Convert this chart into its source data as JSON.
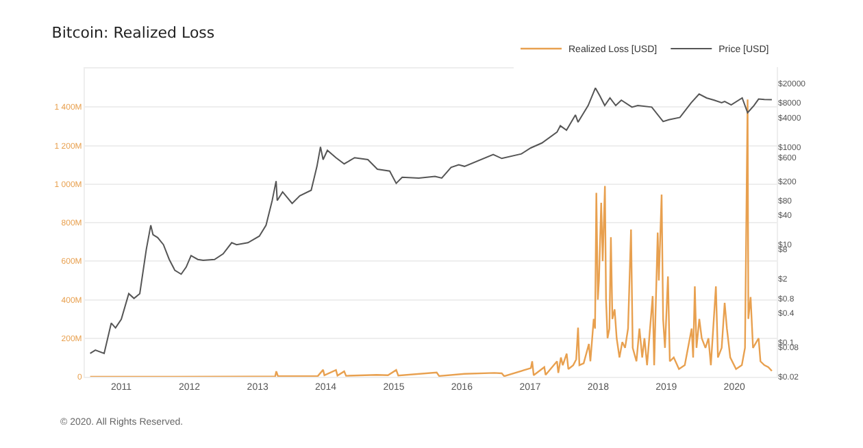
{
  "chart_data": {
    "type": "line",
    "title": "Bitcoin: Realized Loss",
    "annotations": [
      "© 2020. All Rights Reserved."
    ],
    "legend": "top right",
    "grid": "y",
    "log": "y2",
    "xlim": [
      "2010-06-20",
      "2020-08-15"
    ],
    "xticks": [
      {
        "value": "2011-01-01",
        "label": "2011"
      },
      {
        "value": "2012-01-01",
        "label": "2012"
      },
      {
        "value": "2013-01-01",
        "label": "2013"
      },
      {
        "value": "2014-01-01",
        "label": "2014"
      },
      {
        "value": "2015-01-01",
        "label": "2015"
      },
      {
        "value": "2016-01-01",
        "label": "2016"
      },
      {
        "value": "2017-01-01",
        "label": "2017"
      },
      {
        "value": "2018-01-01",
        "label": "2018"
      },
      {
        "value": "2019-01-01",
        "label": "2019"
      },
      {
        "value": "2020-01-01",
        "label": "2020"
      }
    ],
    "ylim": [
      0,
      1600
    ],
    "yticks": [
      0,
      {
        "value": 200,
        "label": "200M"
      },
      {
        "value": 400,
        "label": "400M"
      },
      {
        "value": 600,
        "label": "600M"
      },
      {
        "value": 800,
        "label": "800M"
      },
      {
        "value": 1000,
        "label": "1 000M"
      },
      {
        "value": 1200,
        "label": "1 200M"
      },
      {
        "value": 1400,
        "label": "1 400M"
      }
    ],
    "y2lim": [
      0.02,
      40000
    ],
    "y2ticks": [
      {
        "value": 0.02,
        "label": "$0.02"
      },
      {
        "value": 0.08,
        "label": "$0.08"
      },
      {
        "value": 0.1,
        "label": "$0.1"
      },
      {
        "value": 0.4,
        "label": "$0.4"
      },
      {
        "value": 0.8,
        "label": "$0.8"
      },
      {
        "value": 2,
        "label": "$2"
      },
      {
        "value": 8,
        "label": "$8"
      },
      {
        "value": 10,
        "label": "$10"
      },
      {
        "value": 40,
        "label": "$40"
      },
      {
        "value": 80,
        "label": "$80"
      },
      {
        "value": 200,
        "label": "$200"
      },
      {
        "value": 600,
        "label": "$600"
      },
      {
        "value": 1000,
        "label": "$1000"
      },
      {
        "value": 4000,
        "label": "$4000"
      },
      {
        "value": 8000,
        "label": "$8000"
      },
      {
        "value": 20000,
        "label": "$20000"
      }
    ],
    "series": [
      {
        "name": "Realized Loss [USD]",
        "color": "#e8a04f",
        "x": [
          "2010-07-18",
          "2012-12-01",
          "2013-04-05",
          "2013-04-11",
          "2013-04-20",
          "2013-11-20",
          "2013-12-18",
          "2013-12-25",
          "2014-02-25",
          "2014-03-05",
          "2014-04-10",
          "2014-04-20",
          "2014-10-01",
          "2014-12-01",
          "2015-01-14",
          "2015-01-25",
          "2015-08-19",
          "2015-09-01",
          "2016-01-15",
          "2016-06-23",
          "2016-08-02",
          "2016-08-15",
          "2017-01-05",
          "2017-01-12",
          "2017-01-20",
          "2017-03-18",
          "2017-03-25",
          "2017-05-25",
          "2017-06-01",
          "2017-06-15",
          "2017-06-25",
          "2017-07-16",
          "2017-07-25",
          "2017-08-20",
          "2017-09-05",
          "2017-09-15",
          "2017-09-22",
          "2017-10-15",
          "2017-11-12",
          "2017-11-20",
          "2017-12-08",
          "2017-12-15",
          "2017-12-22",
          "2017-12-30",
          "2018-01-05",
          "2018-01-17",
          "2018-01-25",
          "2018-02-06",
          "2018-02-12",
          "2018-02-20",
          "2018-03-02",
          "2018-03-10",
          "2018-03-18",
          "2018-03-30",
          "2018-04-10",
          "2018-04-25",
          "2018-05-10",
          "2018-05-25",
          "2018-06-10",
          "2018-06-26",
          "2018-07-05",
          "2018-07-25",
          "2018-08-10",
          "2018-08-25",
          "2018-09-06",
          "2018-09-20",
          "2018-10-20",
          "2018-10-28",
          "2018-11-16",
          "2018-11-22",
          "2018-12-07",
          "2018-12-15",
          "2018-12-25",
          "2019-01-10",
          "2019-01-20",
          "2019-02-10",
          "2019-03-10",
          "2019-04-10",
          "2019-05-17",
          "2019-05-25",
          "2019-06-03",
          "2019-06-12",
          "2019-06-27",
          "2019-07-10",
          "2019-07-30",
          "2019-08-15",
          "2019-08-28",
          "2019-09-24",
          "2019-10-05",
          "2019-10-25",
          "2019-11-10",
          "2019-11-22",
          "2019-12-10",
          "2020-01-10",
          "2020-02-10",
          "2020-02-27",
          "2020-03-12",
          "2020-03-16",
          "2020-03-28",
          "2020-04-10",
          "2020-05-10",
          "2020-05-20",
          "2020-06-10",
          "2020-07-01",
          "2020-07-20"
        ],
        "values": [
          0,
          1,
          2,
          28,
          3,
          4,
          36,
          8,
          35,
          6,
          28,
          5,
          10,
          8,
          35,
          6,
          22,
          4,
          15,
          20,
          18,
          3,
          45,
          80,
          8,
          50,
          10,
          80,
          20,
          100,
          60,
          120,
          40,
          60,
          90,
          255,
          60,
          70,
          170,
          80,
          300,
          250,
          955,
          400,
          500,
          903,
          600,
          990,
          400,
          200,
          250,
          724,
          300,
          350,
          200,
          100,
          180,
          150,
          250,
          764,
          150,
          80,
          250,
          100,
          200,
          60,
          419,
          60,
          748,
          500,
          946,
          300,
          150,
          521,
          80,
          100,
          40,
          60,
          250,
          100,
          469,
          150,
          300,
          200,
          150,
          200,
          60,
          469,
          100,
          150,
          384,
          250,
          100,
          40,
          60,
          150,
          1439,
          300,
          414,
          150,
          200,
          80,
          60,
          50,
          30
        ]
      },
      {
        "name": "Price [USD]",
        "color": "#555555",
        "axis": "y2",
        "x": [
          "2010-07-18",
          "2010-08-15",
          "2010-10-01",
          "2010-11-08",
          "2010-12-01",
          "2011-01-01",
          "2011-02-10",
          "2011-03-10",
          "2011-04-10",
          "2011-05-15",
          "2011-06-08",
          "2011-06-20",
          "2011-07-15",
          "2011-08-15",
          "2011-09-15",
          "2011-10-15",
          "2011-11-18",
          "2011-12-15",
          "2012-01-10",
          "2012-02-15",
          "2012-03-15",
          "2012-05-15",
          "2012-06-30",
          "2012-08-15",
          "2012-09-10",
          "2012-11-10",
          "2013-01-10",
          "2013-02-15",
          "2013-03-20",
          "2013-04-10",
          "2013-04-16",
          "2013-05-15",
          "2013-07-05",
          "2013-08-15",
          "2013-10-15",
          "2013-11-15",
          "2013-12-04",
          "2013-12-18",
          "2014-01-10",
          "2014-02-25",
          "2014-04-10",
          "2014-06-05",
          "2014-08-15",
          "2014-10-05",
          "2014-12-10",
          "2015-01-14",
          "2015-02-15",
          "2015-05-15",
          "2015-08-10",
          "2015-09-15",
          "2015-11-04",
          "2015-12-15",
          "2016-01-15",
          "2016-06-17",
          "2016-08-02",
          "2016-11-15",
          "2017-01-04",
          "2017-03-05",
          "2017-05-25",
          "2017-06-12",
          "2017-07-15",
          "2017-09-01",
          "2017-09-15",
          "2017-11-08",
          "2017-12-17",
          "2018-01-10",
          "2018-02-05",
          "2018-03-05",
          "2018-04-05",
          "2018-05-05",
          "2018-07-01",
          "2018-08-01",
          "2018-10-15",
          "2018-12-15",
          "2019-01-15",
          "2019-03-15",
          "2019-05-15",
          "2019-06-26",
          "2019-08-05",
          "2019-09-15",
          "2019-10-25",
          "2019-11-10",
          "2019-12-15",
          "2020-02-12",
          "2020-03-12",
          "2020-04-15",
          "2020-05-10",
          "2020-06-10",
          "2020-07-20"
        ],
        "values": [
          0.06,
          0.07,
          0.06,
          0.25,
          0.2,
          0.3,
          1.0,
          0.8,
          1.0,
          8,
          25,
          16,
          14,
          10,
          5,
          3,
          2.5,
          3.5,
          6,
          5,
          4.8,
          5,
          6.5,
          11,
          10,
          11,
          15,
          25,
          80,
          200,
          80,
          120,
          70,
          100,
          130,
          400,
          1000,
          550,
          850,
          600,
          450,
          600,
          550,
          350,
          320,
          180,
          240,
          230,
          250,
          230,
          380,
          430,
          400,
          700,
          580,
          720,
          950,
          1200,
          2000,
          2700,
          2200,
          4500,
          3200,
          7000,
          16000,
          11000,
          7000,
          10000,
          7000,
          9000,
          6500,
          7000,
          6500,
          3300,
          3600,
          4000,
          8000,
          12000,
          10000,
          9000,
          8000,
          8500,
          7200,
          10000,
          5000,
          7000,
          9500,
          9300,
          9200
        ]
      }
    ]
  }
}
